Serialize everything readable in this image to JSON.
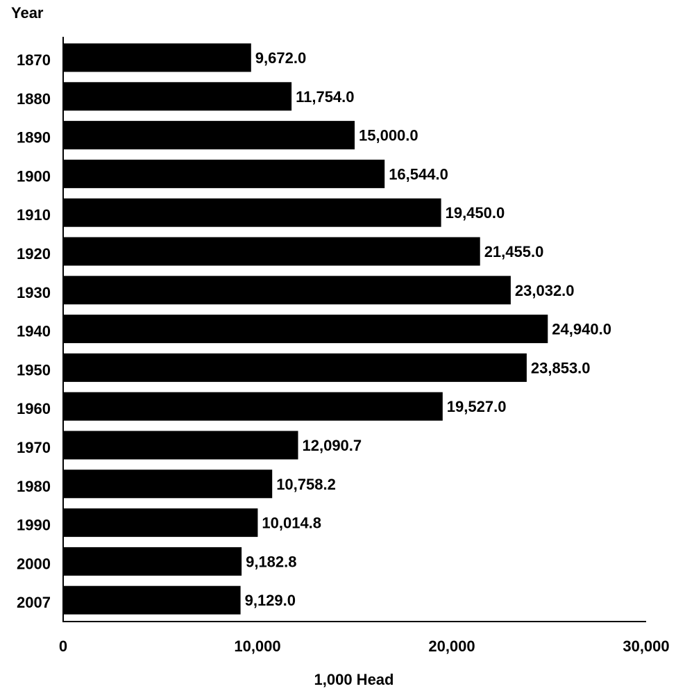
{
  "chart_data": {
    "type": "bar",
    "orientation": "horizontal",
    "categories": [
      "1870",
      "1880",
      "1890",
      "1900",
      "1910",
      "1920",
      "1930",
      "1940",
      "1950",
      "1960",
      "1970",
      "1980",
      "1990",
      "2000",
      "2007"
    ],
    "values": [
      9672.0,
      11754.0,
      15000.0,
      16544.0,
      19450.0,
      21455.0,
      23032.0,
      24940.0,
      23853.0,
      19527.0,
      12090.7,
      10758.2,
      10014.8,
      9182.8,
      9129.0
    ],
    "data_labels": [
      "9,672.0",
      "11,754.0",
      "15,000.0",
      "16,544.0",
      "19,450.0",
      "21,455.0",
      "23,032.0",
      "24,940.0",
      "23,853.0",
      "19,527.0",
      "12,090.7",
      "10,758.2",
      "10,014.8",
      "9,182.8",
      "9,129.0"
    ],
    "ylabel": "Year",
    "xlabel": "1,000 Head",
    "xlim": [
      0,
      30000
    ],
    "x_ticks": [
      0,
      10000,
      20000,
      30000
    ],
    "x_tick_labels": [
      "0",
      "10,000",
      "20,000",
      "30,000"
    ],
    "bar_color": "#000000",
    "grid": false,
    "legend": "none"
  }
}
